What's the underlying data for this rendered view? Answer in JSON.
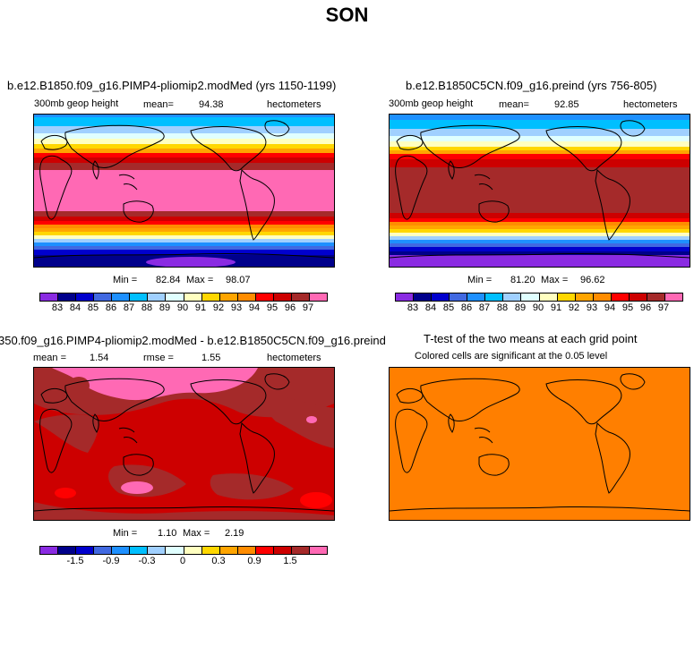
{
  "page": {
    "title": "SON"
  },
  "chart_data": [
    {
      "type": "heatmap",
      "title": "b.e12.B1850.f09_g16.PIMP4-pliomip2.modMed (yrs 1150-1199)",
      "variable": "300mb geop height",
      "mean_label": "mean=",
      "mean": "94.38",
      "units": "hectometers",
      "min_label": "Min =",
      "min": "82.84",
      "max_label": "Max =",
      "max": "98.07",
      "colorbar_labels": [
        "83",
        "84",
        "85",
        "86",
        "87",
        "88",
        "89",
        "90",
        "91",
        "92",
        "93",
        "94",
        "95",
        "96",
        "97"
      ],
      "colorbar_colors": [
        "#8a2be2",
        "#00008b",
        "#0000cd",
        "#4169e1",
        "#1e90ff",
        "#00bfff",
        "#a0d0ff",
        "#e0ffff",
        "#ffffc0",
        "#ffd700",
        "#ffa500",
        "#ff8c00",
        "#ff0000",
        "#cd0000",
        "#a52a2a",
        "#ff69b4"
      ]
    },
    {
      "type": "heatmap",
      "title": "b.e12.B1850C5CN.f09_g16.preind (yrs 756-805)",
      "variable": "300mb geop height",
      "mean_label": "mean=",
      "mean": "92.85",
      "units": "hectometers",
      "min_label": "Min =",
      "min": "81.20",
      "max_label": "Max =",
      "max": "96.62",
      "colorbar_labels": [
        "83",
        "84",
        "85",
        "86",
        "87",
        "88",
        "89",
        "90",
        "91",
        "92",
        "93",
        "94",
        "95",
        "96",
        "97"
      ],
      "colorbar_colors": [
        "#8a2be2",
        "#00008b",
        "#0000cd",
        "#4169e1",
        "#1e90ff",
        "#00bfff",
        "#a0d0ff",
        "#e0ffff",
        "#ffffc0",
        "#ffd700",
        "#ffa500",
        "#ff8c00",
        "#ff0000",
        "#cd0000",
        "#a52a2a",
        "#ff69b4"
      ]
    },
    {
      "type": "heatmap",
      "title": "350.f09_g16.PIMP4-pliomip2.modMed - b.e12.B1850C5CN.f09_g16.preind",
      "mean_label": "mean =",
      "mean": "1.54",
      "rmse_label": "rmse =",
      "rmse": "1.55",
      "units": "hectometers",
      "min_label": "Min =",
      "min": "1.10",
      "max_label": "Max =",
      "max": "2.19",
      "colorbar_labels": [
        "-1.5",
        "-0.9",
        "-0.3",
        "0",
        "0.3",
        "0.9",
        "1.5"
      ],
      "colorbar_colors": [
        "#8a2be2",
        "#00008b",
        "#0000cd",
        "#4169e1",
        "#1e90ff",
        "#00bfff",
        "#a0d0ff",
        "#e0ffff",
        "#ffffc0",
        "#ffd700",
        "#ffa500",
        "#ff8c00",
        "#ff0000",
        "#cd0000",
        "#a52a2a",
        "#ff69b4"
      ]
    },
    {
      "type": "heatmap",
      "title": "T-test of the two means at each grid point",
      "subtitle": "Colored cells are significant at the 0.05 level",
      "fill_color": "#ff7f00"
    }
  ]
}
